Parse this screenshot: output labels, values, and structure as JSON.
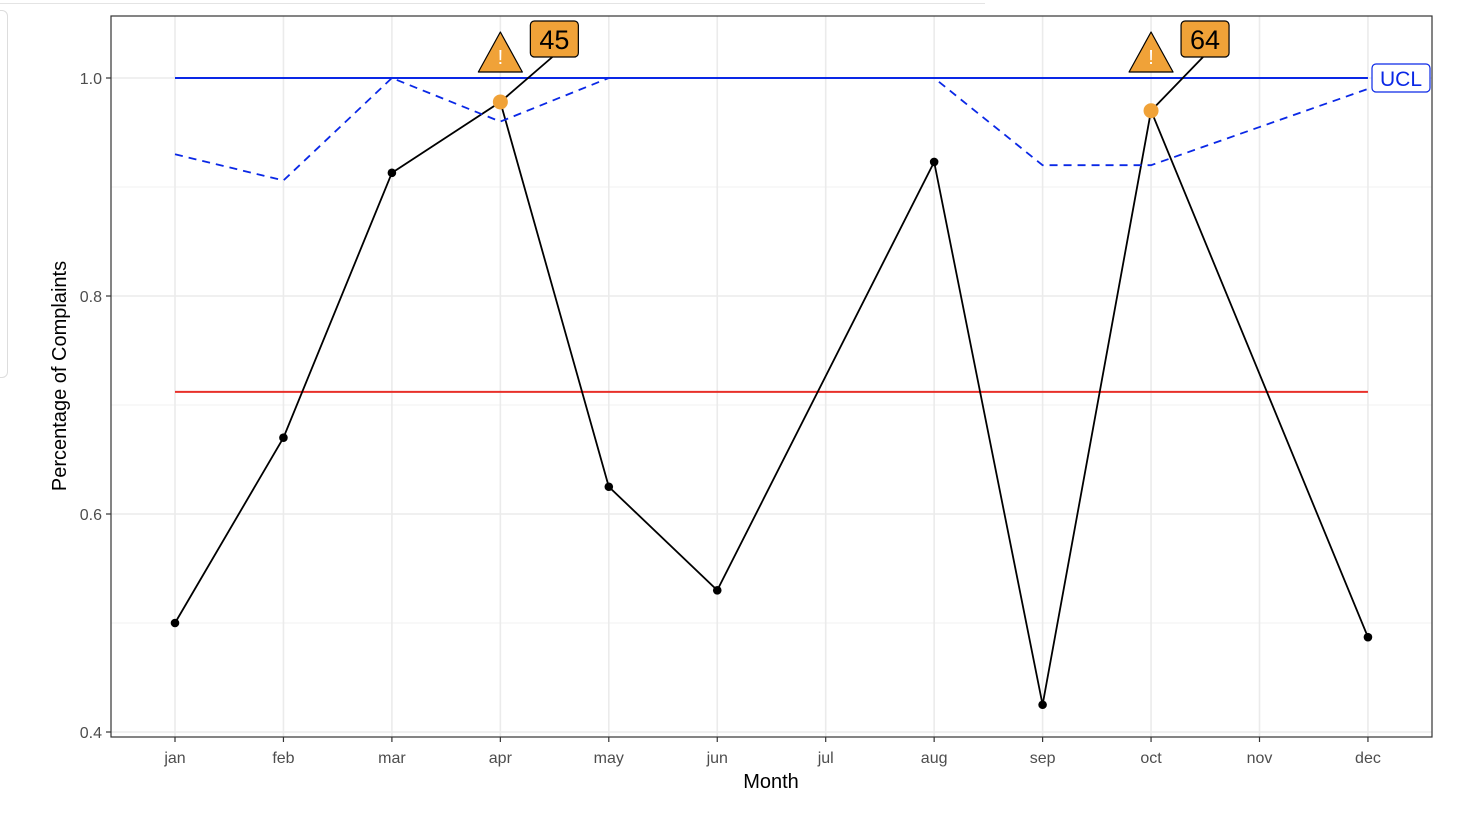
{
  "colors": {
    "series": "#000000",
    "ucl": "#0a28e6",
    "mean": "#e8302a",
    "alert": "#f0a238",
    "grid": "#ebebeb",
    "axis": "#4d4d4d"
  },
  "chart_data": {
    "type": "line",
    "title": "",
    "xlabel": "Month",
    "ylabel": "Percentage of Complaints",
    "ylim": [
      0.4,
      1.06
    ],
    "yticks": [
      0.4,
      0.6,
      0.8,
      1.0
    ],
    "ytick_labels": [
      "0.4",
      "0.6",
      "0.8",
      "1.0"
    ],
    "grid": true,
    "categories": [
      "jan",
      "feb",
      "mar",
      "apr",
      "may",
      "jun",
      "jul",
      "aug",
      "sep",
      "oct",
      "nov",
      "dec"
    ],
    "series": [
      {
        "role": "observed",
        "style": "solid-points",
        "points": [
          {
            "x": "jan",
            "y": 0.5
          },
          {
            "x": "feb",
            "y": 0.67
          },
          {
            "x": "mar",
            "y": 0.913
          },
          {
            "x": "apr",
            "y": 0.978
          },
          {
            "x": "may",
            "y": 0.625
          },
          {
            "x": "jun",
            "y": 0.53
          },
          {
            "x": "aug",
            "y": 0.923
          },
          {
            "x": "sep",
            "y": 0.425
          },
          {
            "x": "oct",
            "y": 0.97
          },
          {
            "x": "dec",
            "y": 0.487
          }
        ]
      },
      {
        "role": "upper-limit-varying",
        "style": "dashed",
        "points": [
          {
            "x": "jan",
            "y": 0.93
          },
          {
            "x": "feb",
            "y": 0.906
          },
          {
            "x": "mar",
            "y": 1.0
          },
          {
            "x": "apr",
            "y": 0.96
          },
          {
            "x": "may",
            "y": 1.0
          },
          {
            "x": "jun",
            "y": 1.0
          },
          {
            "x": "jul",
            "y": 1.0
          },
          {
            "x": "aug",
            "y": 1.0
          },
          {
            "x": "sep",
            "y": 0.92
          },
          {
            "x": "oct",
            "y": 0.92
          },
          {
            "x": "nov",
            "y": 0.955
          },
          {
            "x": "dec",
            "y": 0.99
          }
        ]
      }
    ],
    "reference_lines": [
      {
        "role": "ucl",
        "y": 1.0,
        "from": "jan",
        "to": "dec",
        "label": "UCL"
      },
      {
        "role": "center",
        "y": 0.712,
        "from": "jan",
        "to": "dec",
        "label": ""
      }
    ],
    "alerts": [
      {
        "x": "apr",
        "y": 0.978,
        "label": "45"
      },
      {
        "x": "oct",
        "y": 0.97,
        "label": "64"
      }
    ],
    "warning_symbol": "!"
  }
}
